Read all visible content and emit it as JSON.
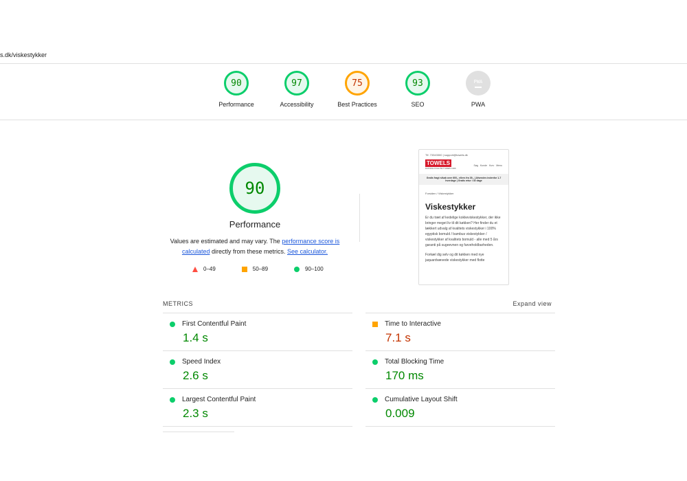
{
  "url": "s.dk/viskestykker",
  "categories": [
    {
      "label": "Performance",
      "score": "90",
      "status": "pass"
    },
    {
      "label": "Accessibility",
      "score": "97",
      "status": "pass"
    },
    {
      "label": "Best Practices",
      "score": "75",
      "status": "average"
    },
    {
      "label": "SEO",
      "score": "93",
      "status": "pass"
    },
    {
      "label": "PWA",
      "score": "PWA",
      "status": "na"
    }
  ],
  "main": {
    "score": "90",
    "title": "Performance",
    "desc_pre": "Values are estimated and may vary. The ",
    "link1": "performance score is calculated",
    "desc_mid": " directly from these metrics. ",
    "link2": "See calculator."
  },
  "legend": [
    "0–49",
    "50–89",
    "90–100"
  ],
  "colors": {
    "pass": "#0cce6b",
    "average": "#ffa400",
    "fail": "#ff4e42"
  },
  "preview": {
    "contact": "Tlf. 73343300 | support@towels.dk",
    "logo": "TOWELS",
    "tagline": "DANSKE KVALITET SIDEN 1996",
    "nav": [
      "Søg",
      "Kunde",
      "Kurv",
      "Menu"
    ],
    "banner": "Gratis fragt n/køb over 600,- ellers fra 39,- | Afsendes indenfor 1-7 hverdage | Gratis retur i 30 dage",
    "breadcrumb": "Forsiden / Viskestykker",
    "heading": "Viskestykker",
    "p1": "Er du træt af kedelige kokkeviskestykker, der ikke bringer meget liv til dit køkken? Her finder du et lækkert udvalg af kvalitets viskestykker i 100% egyptisk bomuld / bambus viskestykker / viskestykker af kvalitets bomuld - alle med 5 års garanti på sugeevnen og farveholdbarheden.",
    "p2": "Forkæl dig selv og dit køkken med nye jaquardvævede viskestykker med flotte"
  },
  "metrics_label": "METRICS",
  "expand": "Expand view",
  "metrics": [
    {
      "label": "First Contentful Paint",
      "value": "1.4 s",
      "status": "pass"
    },
    {
      "label": "Time to Interactive",
      "value": "7.1 s",
      "status": "average"
    },
    {
      "label": "Speed Index",
      "value": "2.6 s",
      "status": "pass"
    },
    {
      "label": "Total Blocking Time",
      "value": "170 ms",
      "status": "pass"
    },
    {
      "label": "Largest Contentful Paint",
      "value": "2.3 s",
      "status": "pass"
    },
    {
      "label": "Cumulative Layout Shift",
      "value": "0.009",
      "status": "pass"
    }
  ]
}
